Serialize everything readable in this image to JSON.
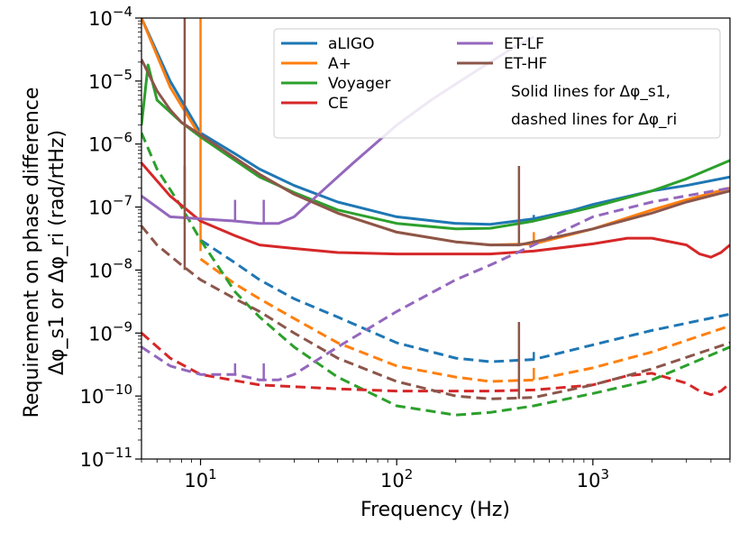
{
  "chart_data": {
    "type": "line",
    "title": "",
    "xlabel": "Frequency (Hz)",
    "ylabel_line1": "Requirement on phase difference",
    "ylabel_line2": "Δφ_s1 or Δφ_ri (rad/rtHz)",
    "xscale": "log",
    "yscale": "log",
    "xlim": [
      5,
      5000
    ],
    "ylim": [
      1e-11,
      0.0001
    ],
    "x_ticks": [
      {
        "value": 10,
        "label": "10",
        "exp": "1"
      },
      {
        "value": 100,
        "label": "10",
        "exp": "2"
      },
      {
        "value": 1000,
        "label": "10",
        "exp": "3"
      }
    ],
    "y_ticks": [
      {
        "value": 1e-11,
        "label": "10",
        "exp": "−11"
      },
      {
        "value": 1e-10,
        "label": "10",
        "exp": "−10"
      },
      {
        "value": 1e-09,
        "label": "10",
        "exp": "−9"
      },
      {
        "value": 1e-08,
        "label": "10",
        "exp": "−8"
      },
      {
        "value": 1e-07,
        "label": "10",
        "exp": "−7"
      },
      {
        "value": 1e-06,
        "label": "10",
        "exp": "−6"
      },
      {
        "value": 1e-05,
        "label": "10",
        "exp": "−5"
      },
      {
        "value": 0.0001,
        "label": "10",
        "exp": "−4"
      }
    ],
    "legend_position": "top-right",
    "legend_note_line1": "Solid lines for Δφ_s1,",
    "legend_note_line2": "dashed lines for Δφ_ri",
    "series": [
      {
        "name": "aLIGO",
        "color": "#1f77b4",
        "solid": [
          [
            5,
            0.0001
          ],
          [
            7,
            1e-05
          ],
          [
            10,
            1.5e-06
          ],
          [
            15,
            7e-07
          ],
          [
            20,
            4e-07
          ],
          [
            30,
            2.2e-07
          ],
          [
            50,
            1.2e-07
          ],
          [
            100,
            7e-08
          ],
          [
            200,
            5.5e-08
          ],
          [
            300,
            5.3e-08
          ],
          [
            500,
            6.5e-08
          ],
          [
            800,
            9e-08
          ],
          [
            1000,
            1.1e-07
          ],
          [
            2000,
            1.8e-07
          ],
          [
            3000,
            2.2e-07
          ],
          [
            5000,
            3e-07
          ]
        ],
        "dashed": [
          [
            10,
            3e-08
          ],
          [
            15,
            1.3e-08
          ],
          [
            20,
            7e-09
          ],
          [
            30,
            3.5e-09
          ],
          [
            50,
            1.8e-09
          ],
          [
            100,
            7e-10
          ],
          [
            200,
            4e-10
          ],
          [
            300,
            3.5e-10
          ],
          [
            500,
            3.8e-10
          ],
          [
            1000,
            6.5e-10
          ],
          [
            2000,
            1.1e-09
          ],
          [
            5000,
            2e-09
          ]
        ],
        "spikes": [
          [
            500,
            6.5e-08,
            7.5e-08
          ],
          [
            500,
            3.8e-10,
            5e-10
          ]
        ]
      },
      {
        "name": "A+",
        "color": "#ff7f0e",
        "solid": [
          [
            5,
            0.0001
          ],
          [
            7,
            8e-06
          ],
          [
            10,
            1.3e-06
          ],
          [
            15,
            6e-07
          ],
          [
            20,
            3.3e-07
          ],
          [
            30,
            1.6e-07
          ],
          [
            50,
            8e-08
          ],
          [
            100,
            4e-08
          ],
          [
            200,
            2.8e-08
          ],
          [
            300,
            2.5e-08
          ],
          [
            500,
            2.6e-08
          ],
          [
            1000,
            4.5e-08
          ],
          [
            2000,
            9e-08
          ],
          [
            3000,
            1.3e-07
          ],
          [
            5000,
            2e-07
          ]
        ],
        "dashed": [
          [
            10,
            1.5e-08
          ],
          [
            15,
            6e-09
          ],
          [
            20,
            3.5e-09
          ],
          [
            30,
            1.7e-09
          ],
          [
            50,
            7e-10
          ],
          [
            100,
            3e-10
          ],
          [
            200,
            2e-10
          ],
          [
            300,
            1.7e-10
          ],
          [
            500,
            1.8e-10
          ],
          [
            1000,
            2.8e-10
          ],
          [
            2000,
            5e-10
          ],
          [
            5000,
            1.3e-09
          ]
        ],
        "spikes": [
          [
            10,
            2e-08,
            0.0001
          ],
          [
            500,
            2.6e-08,
            4e-08
          ],
          [
            500,
            1.8e-10,
            2.8e-10
          ]
        ]
      },
      {
        "name": "Voyager",
        "color": "#2ca02c",
        "solid": [
          [
            5,
            2e-06
          ],
          [
            5.4,
            1.8e-05
          ],
          [
            6,
            5e-06
          ],
          [
            8,
            2.2e-06
          ],
          [
            10,
            1.3e-06
          ],
          [
            15,
            5.5e-07
          ],
          [
            20,
            3e-07
          ],
          [
            30,
            1.7e-07
          ],
          [
            50,
            9e-08
          ],
          [
            100,
            5.5e-08
          ],
          [
            200,
            4.5e-08
          ],
          [
            300,
            4.6e-08
          ],
          [
            500,
            6e-08
          ],
          [
            1000,
            1e-07
          ],
          [
            2000,
            1.8e-07
          ],
          [
            3000,
            2.8e-07
          ],
          [
            5000,
            5.5e-07
          ]
        ],
        "dashed": [
          [
            5,
            1.5e-06
          ],
          [
            6,
            4e-07
          ],
          [
            8,
            1e-07
          ],
          [
            10,
            3e-08
          ],
          [
            15,
            4.5e-09
          ],
          [
            20,
            1.8e-09
          ],
          [
            30,
            6e-10
          ],
          [
            50,
            2e-10
          ],
          [
            100,
            7e-11
          ],
          [
            200,
            5e-11
          ],
          [
            300,
            5.5e-11
          ],
          [
            500,
            7e-11
          ],
          [
            1000,
            1.1e-10
          ],
          [
            2000,
            1.8e-10
          ],
          [
            5000,
            6e-10
          ]
        ],
        "spikes": []
      },
      {
        "name": "CE",
        "color": "#d62728",
        "solid": [
          [
            5,
            5e-07
          ],
          [
            7,
            1.5e-07
          ],
          [
            10,
            6e-08
          ],
          [
            15,
            3.5e-08
          ],
          [
            20,
            2.5e-08
          ],
          [
            30,
            2.2e-08
          ],
          [
            50,
            1.9e-08
          ],
          [
            100,
            1.8e-08
          ],
          [
            300,
            1.8e-08
          ],
          [
            500,
            2e-08
          ],
          [
            1000,
            2.6e-08
          ],
          [
            1500,
            3.2e-08
          ],
          [
            2000,
            3.2e-08
          ],
          [
            3000,
            2.5e-08
          ],
          [
            3500,
            1.8e-08
          ],
          [
            4000,
            1.6e-08
          ],
          [
            4500,
            1.9e-08
          ],
          [
            5000,
            2.5e-08
          ]
        ],
        "dashed": [
          [
            5,
            1e-09
          ],
          [
            7,
            4e-10
          ],
          [
            10,
            2.2e-10
          ],
          [
            20,
            1.5e-10
          ],
          [
            50,
            1.3e-10
          ],
          [
            100,
            1.2e-10
          ],
          [
            300,
            1.2e-10
          ],
          [
            500,
            1.25e-10
          ],
          [
            1000,
            1.5e-10
          ],
          [
            1500,
            2.1e-10
          ],
          [
            2000,
            2.3e-10
          ],
          [
            3000,
            1.6e-10
          ],
          [
            3500,
            1.2e-10
          ],
          [
            4000,
            1.05e-10
          ],
          [
            4500,
            1.2e-10
          ],
          [
            5000,
            1.6e-10
          ]
        ],
        "spikes": []
      },
      {
        "name": "ET-LF",
        "color": "#9467bd",
        "solid": [
          [
            5,
            1.5e-07
          ],
          [
            7,
            7e-08
          ],
          [
            10,
            6.5e-08
          ],
          [
            15,
            6e-08
          ],
          [
            20,
            5.5e-08
          ],
          [
            25,
            5.5e-08
          ],
          [
            30,
            7e-08
          ],
          [
            40,
            1.6e-07
          ],
          [
            60,
            5e-07
          ],
          [
            100,
            2e-06
          ],
          [
            150,
            5e-06
          ],
          [
            200,
            9e-06
          ],
          [
            300,
            2e-05
          ],
          [
            400,
            3.5e-05
          ],
          [
            500,
            5e-05
          ]
        ],
        "dashed": [
          [
            5,
            6e-10
          ],
          [
            7,
            3e-10
          ],
          [
            10,
            2.2e-10
          ],
          [
            15,
            2.2e-10
          ],
          [
            20,
            1.8e-10
          ],
          [
            25,
            1.8e-10
          ],
          [
            30,
            2.2e-10
          ],
          [
            50,
            6e-10
          ],
          [
            100,
            2.2e-09
          ],
          [
            200,
            7e-09
          ],
          [
            300,
            1.2e-08
          ],
          [
            500,
            2.5e-08
          ],
          [
            1000,
            7e-08
          ],
          [
            2000,
            1.2e-07
          ],
          [
            5000,
            2e-07
          ]
        ],
        "spikes": [
          [
            15,
            6e-08,
            1.3e-07
          ],
          [
            21,
            5.5e-08,
            1.3e-07
          ],
          [
            15,
            2.2e-10,
            3.3e-10
          ],
          [
            21,
            1.8e-10,
            3.3e-10
          ]
        ]
      },
      {
        "name": "ET-HF",
        "color": "#8c564b",
        "solid": [
          [
            5,
            2.2e-05
          ],
          [
            6,
            7e-06
          ],
          [
            7,
            3.5e-06
          ],
          [
            8,
            2.2e-06
          ],
          [
            10,
            1.4e-06
          ],
          [
            15,
            6e-07
          ],
          [
            20,
            3.3e-07
          ],
          [
            30,
            1.6e-07
          ],
          [
            50,
            8e-08
          ],
          [
            100,
            4e-08
          ],
          [
            200,
            2.8e-08
          ],
          [
            300,
            2.5e-08
          ],
          [
            420,
            2.5e-08
          ],
          [
            500,
            2.8e-08
          ],
          [
            1000,
            4.5e-08
          ],
          [
            2000,
            8e-08
          ],
          [
            3000,
            1.2e-07
          ],
          [
            5000,
            1.8e-07
          ]
        ],
        "dashed": [
          [
            5,
            5e-08
          ],
          [
            6,
            2.5e-08
          ],
          [
            8,
            1.2e-08
          ],
          [
            10,
            7e-09
          ],
          [
            15,
            3.5e-09
          ],
          [
            20,
            2.2e-09
          ],
          [
            30,
            1e-09
          ],
          [
            50,
            4e-10
          ],
          [
            100,
            1.7e-10
          ],
          [
            200,
            1e-10
          ],
          [
            300,
            9e-11
          ],
          [
            500,
            9.5e-11
          ],
          [
            1000,
            1.5e-10
          ],
          [
            2000,
            2.7e-10
          ],
          [
            5000,
            7e-10
          ]
        ],
        "spikes": [
          [
            8.3,
            1e-07,
            0.0001
          ],
          [
            8.3,
            1e-08,
            4.5e-07
          ],
          [
            420,
            2.5e-08,
            4.5e-07
          ],
          [
            420,
            9e-11,
            1.5e-09
          ]
        ]
      }
    ]
  }
}
